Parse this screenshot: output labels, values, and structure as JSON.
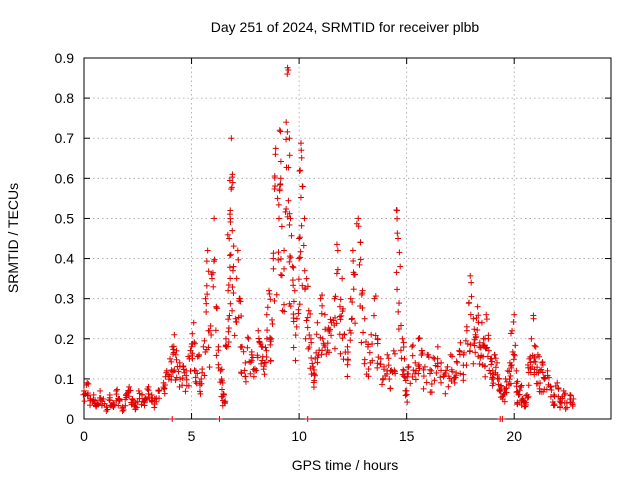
{
  "chart_data": {
    "type": "scatter",
    "title": "Day 251 of 2024, SRMTID for receiver plbb",
    "xlabel": "GPS time / hours",
    "ylabel": "SRMTID / TECUs",
    "xlim": [
      0,
      24.5
    ],
    "ylim": [
      0,
      0.9
    ],
    "xticks": [
      0,
      5,
      10,
      15,
      20
    ],
    "xtick_labels": [
      "0",
      "5",
      "10",
      "15",
      "20"
    ],
    "yticks": [
      0,
      0.1,
      0.2,
      0.3,
      0.4,
      0.5,
      0.6,
      0.7,
      0.8,
      0.9
    ],
    "ytick_labels": [
      "0",
      "0.1",
      "0.2",
      "0.3",
      "0.4",
      "0.5",
      "0.6",
      "0.7",
      "0.8",
      "0.9"
    ],
    "grid": true,
    "marker": "+",
    "marker_color": "#e00000",
    "series": [
      {
        "name": "SRMTID",
        "points": [
          [
            0.0,
            0.07
          ],
          [
            0.15,
            0.09
          ],
          [
            0.3,
            0.05
          ],
          [
            0.45,
            0.06
          ],
          [
            0.6,
            0.04
          ],
          [
            0.75,
            0.07
          ],
          [
            0.9,
            0.05
          ],
          [
            1.05,
            0.03
          ],
          [
            1.2,
            0.06
          ],
          [
            1.35,
            0.04
          ],
          [
            1.5,
            0.07
          ],
          [
            1.65,
            0.05
          ],
          [
            1.8,
            0.03
          ],
          [
            1.95,
            0.06
          ],
          [
            2.1,
            0.08
          ],
          [
            2.25,
            0.05
          ],
          [
            2.4,
            0.04
          ],
          [
            2.55,
            0.07
          ],
          [
            2.7,
            0.06
          ],
          [
            2.85,
            0.05
          ],
          [
            3.0,
            0.08
          ],
          [
            3.15,
            0.06
          ],
          [
            3.3,
            0.05
          ],
          [
            3.5,
            0.07
          ],
          [
            3.7,
            0.09
          ],
          [
            3.85,
            0.12
          ],
          [
            4.0,
            0.15
          ],
          [
            4.1,
            0.18
          ],
          [
            4.2,
            0.21
          ],
          [
            4.3,
            0.17
          ],
          [
            4.45,
            0.14
          ],
          [
            4.6,
            0.13
          ],
          [
            4.75,
            0.12
          ],
          [
            4.9,
            0.15
          ],
          [
            5.0,
            0.18
          ],
          [
            5.1,
            0.24
          ],
          [
            5.2,
            0.12
          ],
          [
            5.35,
            0.16
          ],
          [
            5.45,
            0.1
          ],
          [
            5.55,
            0.18
          ],
          [
            5.65,
            0.3
          ],
          [
            5.75,
            0.42
          ],
          [
            5.85,
            0.22
          ],
          [
            5.95,
            0.35
          ],
          [
            6.05,
            0.5
          ],
          [
            6.15,
            0.28
          ],
          [
            6.25,
            0.18
          ],
          [
            6.35,
            0.12
          ],
          [
            6.45,
            0.09
          ],
          [
            6.5,
            0.06
          ],
          [
            6.6,
            0.2
          ],
          [
            6.7,
            0.32
          ],
          [
            6.75,
            0.45
          ],
          [
            6.8,
            0.52
          ],
          [
            6.85,
            0.7
          ],
          [
            6.9,
            0.61
          ],
          [
            6.95,
            0.38
          ],
          [
            7.05,
            0.25
          ],
          [
            7.15,
            0.42
          ],
          [
            7.25,
            0.3
          ],
          [
            7.35,
            0.18
          ],
          [
            7.5,
            0.14
          ],
          [
            7.65,
            0.2
          ],
          [
            7.8,
            0.16
          ],
          [
            7.95,
            0.12
          ],
          [
            8.1,
            0.22
          ],
          [
            8.25,
            0.18
          ],
          [
            8.4,
            0.14
          ],
          [
            8.5,
            0.26
          ],
          [
            8.6,
            0.32
          ],
          [
            8.7,
            0.2
          ],
          [
            8.8,
            0.4
          ],
          [
            8.9,
            0.66
          ],
          [
            9.0,
            0.55
          ],
          [
            9.1,
            0.72
          ],
          [
            9.15,
            0.6
          ],
          [
            9.2,
            0.48
          ],
          [
            9.3,
            0.42
          ],
          [
            9.4,
            0.74
          ],
          [
            9.45,
            0.86
          ],
          [
            9.5,
            0.87
          ],
          [
            9.55,
            0.7
          ],
          [
            9.6,
            0.5
          ],
          [
            9.7,
            0.38
          ],
          [
            9.8,
            0.32
          ],
          [
            9.9,
            0.25
          ],
          [
            10.0,
            0.45
          ],
          [
            10.05,
            0.62
          ],
          [
            10.1,
            0.67
          ],
          [
            10.15,
            0.58
          ],
          [
            10.25,
            0.5
          ],
          [
            10.35,
            0.35
          ],
          [
            10.45,
            0.27
          ],
          [
            10.55,
            0.2
          ],
          [
            10.65,
            0.13
          ],
          [
            10.75,
            0.15
          ],
          [
            10.85,
            0.24
          ],
          [
            11.0,
            0.3
          ],
          [
            11.1,
            0.2
          ],
          [
            11.2,
            0.26
          ],
          [
            11.35,
            0.22
          ],
          [
            11.5,
            0.24
          ],
          [
            11.65,
            0.3
          ],
          [
            11.8,
            0.42
          ],
          [
            11.9,
            0.28
          ],
          [
            12.0,
            0.35
          ],
          [
            12.1,
            0.21
          ],
          [
            12.25,
            0.18
          ],
          [
            12.4,
            0.3
          ],
          [
            12.5,
            0.42
          ],
          [
            12.6,
            0.36
          ],
          [
            12.75,
            0.5
          ],
          [
            12.85,
            0.44
          ],
          [
            12.95,
            0.32
          ],
          [
            13.05,
            0.25
          ],
          [
            13.2,
            0.18
          ],
          [
            13.35,
            0.21
          ],
          [
            13.5,
            0.3
          ],
          [
            13.65,
            0.2
          ],
          [
            13.8,
            0.15
          ],
          [
            13.95,
            0.13
          ],
          [
            14.1,
            0.16
          ],
          [
            14.25,
            0.12
          ],
          [
            14.4,
            0.17
          ],
          [
            14.55,
            0.52
          ],
          [
            14.6,
            0.45
          ],
          [
            14.7,
            0.38
          ],
          [
            14.8,
            0.2
          ],
          [
            14.9,
            0.15
          ],
          [
            15.0,
            0.07
          ],
          [
            15.1,
            0.13
          ],
          [
            15.25,
            0.18
          ],
          [
            15.4,
            0.14
          ],
          [
            15.55,
            0.2
          ],
          [
            15.7,
            0.17
          ],
          [
            15.85,
            0.13
          ],
          [
            16.0,
            0.16
          ],
          [
            16.15,
            0.12
          ],
          [
            16.3,
            0.15
          ],
          [
            16.45,
            0.18
          ],
          [
            16.6,
            0.14
          ],
          [
            16.75,
            0.11
          ],
          [
            16.9,
            0.13
          ],
          [
            17.05,
            0.16
          ],
          [
            17.2,
            0.1
          ],
          [
            17.35,
            0.14
          ],
          [
            17.5,
            0.19
          ],
          [
            17.65,
            0.16
          ],
          [
            17.8,
            0.22
          ],
          [
            17.9,
            0.29
          ],
          [
            18.0,
            0.34
          ],
          [
            18.1,
            0.25
          ],
          [
            18.2,
            0.21
          ],
          [
            18.3,
            0.28
          ],
          [
            18.4,
            0.19
          ],
          [
            18.5,
            0.24
          ],
          [
            18.6,
            0.18
          ],
          [
            18.7,
            0.26
          ],
          [
            18.8,
            0.2
          ],
          [
            18.9,
            0.15
          ],
          [
            19.0,
            0.12
          ],
          [
            19.1,
            0.16
          ],
          [
            19.2,
            0.14
          ],
          [
            19.3,
            0.1
          ],
          [
            19.4,
            0.08
          ],
          [
            19.5,
            0.06
          ],
          [
            19.6,
            0.1
          ],
          [
            19.7,
            0.12
          ],
          [
            19.8,
            0.14
          ],
          [
            19.9,
            0.22
          ],
          [
            20.0,
            0.26
          ],
          [
            20.1,
            0.12
          ],
          [
            20.2,
            0.06
          ],
          [
            20.3,
            0.08
          ],
          [
            20.4,
            0.05
          ],
          [
            20.5,
            0.04
          ],
          [
            20.6,
            0.06
          ],
          [
            20.7,
            0.15
          ],
          [
            20.8,
            0.2
          ],
          [
            20.9,
            0.25
          ],
          [
            21.0,
            0.18
          ],
          [
            21.1,
            0.16
          ],
          [
            21.2,
            0.12
          ],
          [
            21.3,
            0.14
          ],
          [
            21.4,
            0.1
          ],
          [
            21.55,
            0.12
          ],
          [
            21.7,
            0.08
          ],
          [
            21.85,
            0.06
          ],
          [
            22.0,
            0.09
          ],
          [
            22.15,
            0.05
          ],
          [
            22.3,
            0.07
          ],
          [
            22.45,
            0.04
          ],
          [
            22.6,
            0.06
          ],
          [
            22.75,
            0.05
          ],
          [
            4.1,
            0.0
          ],
          [
            6.3,
            0.0
          ],
          [
            10.4,
            0.0
          ],
          [
            19.35,
            0.0
          ],
          [
            19.45,
            0.0
          ]
        ]
      }
    ]
  }
}
